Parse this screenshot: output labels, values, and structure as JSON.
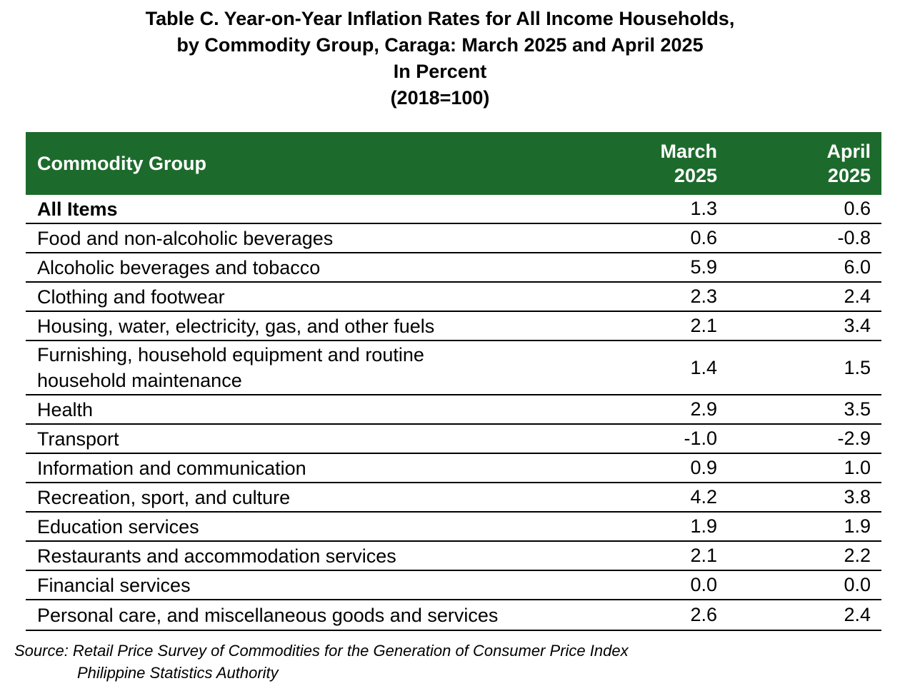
{
  "title": {
    "line1": "Table C. Year-on-Year Inflation Rates for All Income Households,",
    "line2": "by Commodity Group, Caraga: March 2025 and April 2025",
    "line3": "In Percent",
    "line4": "(2018=100)"
  },
  "table": {
    "header": {
      "commodity": "Commodity Group",
      "march": "March\n2025",
      "april": "April\n2025"
    },
    "header_color": "#1d6b2c",
    "rows": [
      {
        "name": "All Items",
        "march": "1.3",
        "april": "0.6"
      },
      {
        "name": "Food and non-alcoholic beverages",
        "march": "0.6",
        "april": "-0.8"
      },
      {
        "name": "Alcoholic beverages and tobacco",
        "march": "5.9",
        "april": "6.0"
      },
      {
        "name": "Clothing and footwear",
        "march": "2.3",
        "april": "2.4"
      },
      {
        "name": "Housing, water, electricity, gas, and other fuels",
        "march": "2.1",
        "april": "3.4"
      },
      {
        "name": "Furnishing, household equipment and routine household maintenance",
        "march": "1.4",
        "april": "1.5"
      },
      {
        "name": "Health",
        "march": "2.9",
        "april": "3.5"
      },
      {
        "name": "Transport",
        "march": "-1.0",
        "april": "-2.9"
      },
      {
        "name": "Information and communication",
        "march": "0.9",
        "april": "1.0"
      },
      {
        "name": "Recreation, sport, and culture",
        "march": "4.2",
        "april": "3.8"
      },
      {
        "name": "Education services",
        "march": "1.9",
        "april": "1.9"
      },
      {
        "name": "Restaurants and accommodation services",
        "march": "2.1",
        "april": "2.2"
      },
      {
        "name": "Financial services",
        "march": "0.0",
        "april": "0.0"
      },
      {
        "name": "Personal care, and miscellaneous goods and services",
        "march": "2.6",
        "april": "2.4"
      }
    ]
  },
  "source": {
    "line1": "Source: Retail Price Survey of Commodities for the Generation of Consumer Price Index",
    "line2": "Philippine Statistics Authority"
  }
}
